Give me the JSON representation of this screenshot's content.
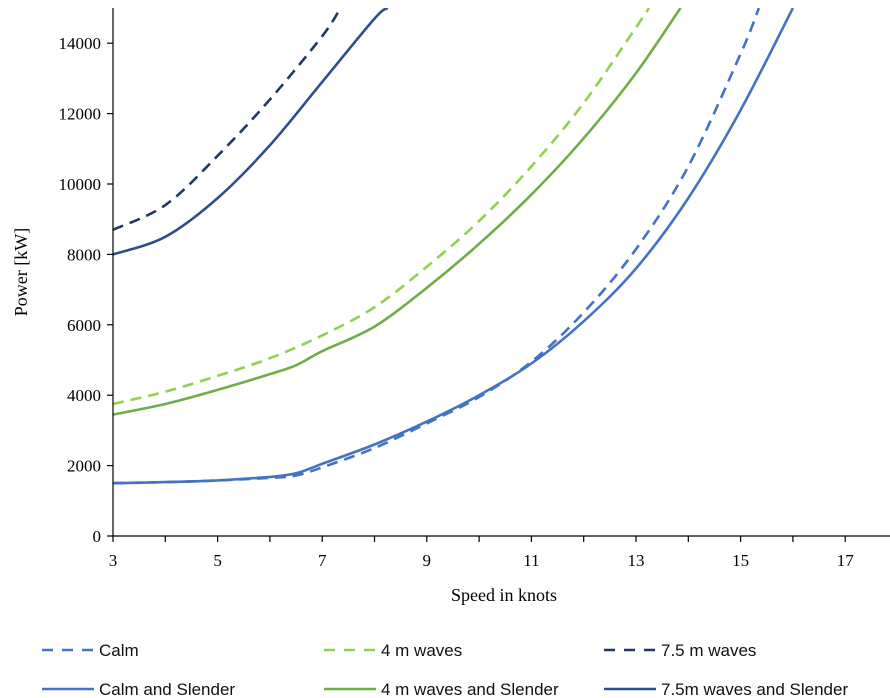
{
  "chart_data": {
    "type": "line",
    "xlabel": "Speed in knots",
    "ylabel": "Power [kW]",
    "xlim": [
      3,
      18
    ],
    "ylim": [
      0,
      15000
    ],
    "x_ticks": [
      3,
      5,
      7,
      9,
      11,
      13,
      15,
      17
    ],
    "y_ticks": [
      0,
      2000,
      4000,
      6000,
      8000,
      10000,
      12000,
      14000
    ],
    "grid": false,
    "legend_position": "bottom",
    "series": [
      {
        "name": "Calm",
        "color": "#4472C4",
        "dash": "dashed",
        "x": [
          3,
          4,
          5,
          6,
          6.5,
          7,
          8,
          9,
          10,
          11,
          12,
          13,
          14,
          15,
          15.35
        ],
        "y": [
          1500,
          1530,
          1580,
          1650,
          1720,
          1950,
          2500,
          3200,
          3950,
          4950,
          6350,
          8150,
          10500,
          13700,
          15000
        ]
      },
      {
        "name": "4 m waves",
        "color": "#92D050",
        "dash": "dashed",
        "x": [
          3,
          4,
          5,
          6,
          7,
          8,
          9,
          10,
          11,
          12,
          13,
          13.25
        ],
        "y": [
          3750,
          4100,
          4550,
          5050,
          5700,
          6500,
          7650,
          8950,
          10500,
          12300,
          14450,
          15000
        ]
      },
      {
        "name": "7.5 m waves",
        "color": "#1F3864",
        "dash": "dashed",
        "x": [
          3,
          4,
          5,
          6,
          7,
          7.35
        ],
        "y": [
          8700,
          9400,
          10800,
          12400,
          14200,
          15000
        ]
      },
      {
        "name": "Calm and Slender",
        "color": "#4472C4",
        "dash": "solid",
        "x": [
          3,
          4,
          5,
          6,
          6.5,
          7,
          8,
          9,
          10,
          11,
          12,
          13,
          14,
          15,
          16
        ],
        "y": [
          1500,
          1530,
          1580,
          1680,
          1780,
          2050,
          2600,
          3250,
          4000,
          4900,
          6100,
          7600,
          9600,
          12100,
          15000
        ]
      },
      {
        "name": "4 m waves and Slender",
        "color": "#70AD47",
        "dash": "solid",
        "x": [
          3,
          4,
          5,
          6,
          6.5,
          7,
          8,
          9,
          10,
          11,
          12,
          13,
          13.85
        ],
        "y": [
          3450,
          3750,
          4150,
          4600,
          4850,
          5250,
          5950,
          7050,
          8300,
          9700,
          11300,
          13150,
          15000
        ]
      },
      {
        "name": "7.5m waves and Slender",
        "color": "#2F4E8C",
        "dash": "solid",
        "x": [
          3,
          4,
          5,
          6,
          7,
          8,
          8.25
        ],
        "y": [
          8000,
          8500,
          9600,
          11100,
          12900,
          14700,
          15000
        ]
      }
    ]
  }
}
